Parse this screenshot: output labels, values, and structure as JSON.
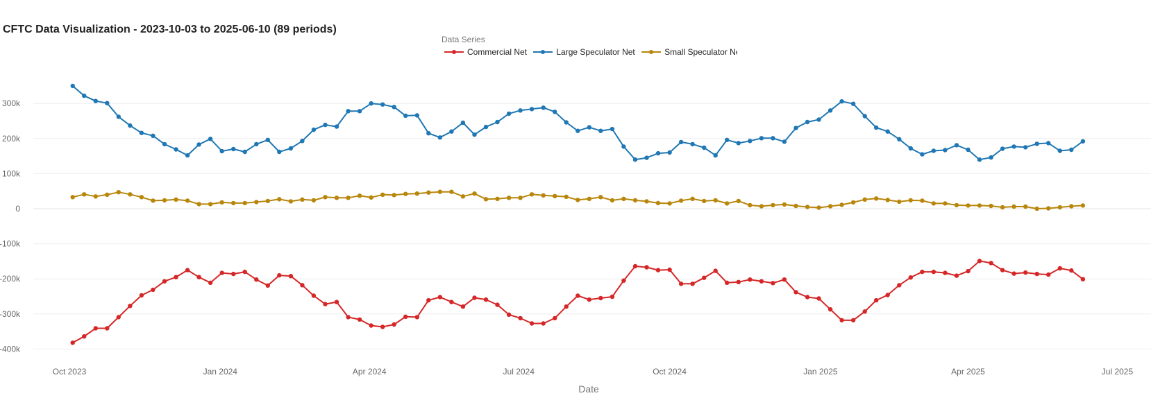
{
  "title": "CFTC Data Visualization - 2023-10-03 to 2025-06-10 (89 periods)",
  "legend": {
    "title": "Data Series",
    "items": [
      {
        "label": "Commercial Net",
        "color": "#d62728"
      },
      {
        "label": "Large Speculator Net",
        "color": "#1f77b4"
      },
      {
        "label": "Small Speculator Net",
        "color": "#b8860b"
      }
    ]
  },
  "chart_data": {
    "type": "line",
    "xlabel": "Date",
    "ylabel": "",
    "x_start": "2023-10-03",
    "x_end": "2025-06-10",
    "x_interval": "weekly",
    "xlim": [
      "2023-09-09",
      "2025-07-08"
    ],
    "ylim": [
      -430000,
      380000
    ],
    "x_ticks": [
      "Oct 2023",
      "Jan 2024",
      "Apr 2024",
      "Jul 2024",
      "Oct 2024",
      "Jan 2025",
      "Apr 2025",
      "Jul 2025"
    ],
    "y_ticks": [
      "300k",
      "200k",
      "100k",
      "0",
      "-100k",
      "-200k",
      "-300k",
      "-400k"
    ],
    "grid": true,
    "legend_position": "top-center",
    "series": [
      {
        "name": "Commercial Net",
        "color": "#d62728",
        "values": [
          -382000,
          -364000,
          -341000,
          -341000,
          -309000,
          -277000,
          -247000,
          -231000,
          -207000,
          -195000,
          -175000,
          -195000,
          -211000,
          -183000,
          -186000,
          -180000,
          -202000,
          -219000,
          -190000,
          -192000,
          -218000,
          -248000,
          -272000,
          -266000,
          -309000,
          -316000,
          -333000,
          -337000,
          -330000,
          -308000,
          -309000,
          -261000,
          -252000,
          -266000,
          -279000,
          -254000,
          -259000,
          -274000,
          -302000,
          -312000,
          -327000,
          -327000,
          -312000,
          -279000,
          -248000,
          -259000,
          -255000,
          -251000,
          -205000,
          -164000,
          -167000,
          -175000,
          -174000,
          -214000,
          -214000,
          -197000,
          -177000,
          -211000,
          -209000,
          -202000,
          -207000,
          -212000,
          -202000,
          -238000,
          -252000,
          -256000,
          -287000,
          -318000,
          -318000,
          -293000,
          -261000,
          -246000,
          -218000,
          -196000,
          -180000,
          -180000,
          -183000,
          -191000,
          -178000,
          -149000,
          -155000,
          -175000,
          -185000,
          -182000,
          -186000,
          -188000,
          -170000,
          -176000,
          -201000
        ]
      },
      {
        "name": "Large Speculator Net",
        "color": "#1f77b4",
        "values": [
          350000,
          322000,
          307000,
          301000,
          262000,
          237000,
          216000,
          208000,
          184000,
          169000,
          152000,
          183000,
          199000,
          164000,
          170000,
          162000,
          184000,
          196000,
          162000,
          172000,
          193000,
          225000,
          239000,
          234000,
          278000,
          278000,
          300000,
          297000,
          290000,
          265000,
          266000,
          215000,
          203000,
          220000,
          245000,
          211000,
          233000,
          247000,
          271000,
          280000,
          284000,
          288000,
          276000,
          246000,
          222000,
          232000,
          222000,
          227000,
          177000,
          140000,
          145000,
          158000,
          160000,
          190000,
          184000,
          174000,
          152000,
          196000,
          187000,
          193000,
          201000,
          201000,
          191000,
          230000,
          247000,
          254000,
          280000,
          306000,
          299000,
          264000,
          231000,
          220000,
          198000,
          172000,
          155000,
          165000,
          167000,
          181000,
          168000,
          140000,
          146000,
          171000,
          177000,
          175000,
          185000,
          187000,
          165000,
          168000,
          192000
        ]
      },
      {
        "name": "Small Speculator Net",
        "color": "#b8860b",
        "values": [
          33000,
          41000,
          35000,
          40000,
          47000,
          41000,
          33000,
          23000,
          24000,
          26000,
          23000,
          13000,
          13000,
          18000,
          16000,
          16000,
          19000,
          22000,
          27000,
          21000,
          26000,
          24000,
          33000,
          31000,
          31000,
          37000,
          32000,
          40000,
          39000,
          42000,
          43000,
          46000,
          48000,
          48000,
          35000,
          43000,
          27000,
          28000,
          31000,
          31000,
          41000,
          38000,
          36000,
          34000,
          25000,
          28000,
          33000,
          24000,
          28000,
          24000,
          21000,
          16000,
          15000,
          23000,
          28000,
          22000,
          24000,
          15000,
          22000,
          10000,
          7000,
          10000,
          12000,
          8000,
          5000,
          3000,
          7000,
          11000,
          18000,
          26000,
          29000,
          25000,
          20000,
          24000,
          23000,
          15000,
          15000,
          10000,
          9000,
          9000,
          8000,
          4000,
          6000,
          6000,
          0,
          1000,
          4000,
          7000,
          9000
        ]
      }
    ]
  }
}
